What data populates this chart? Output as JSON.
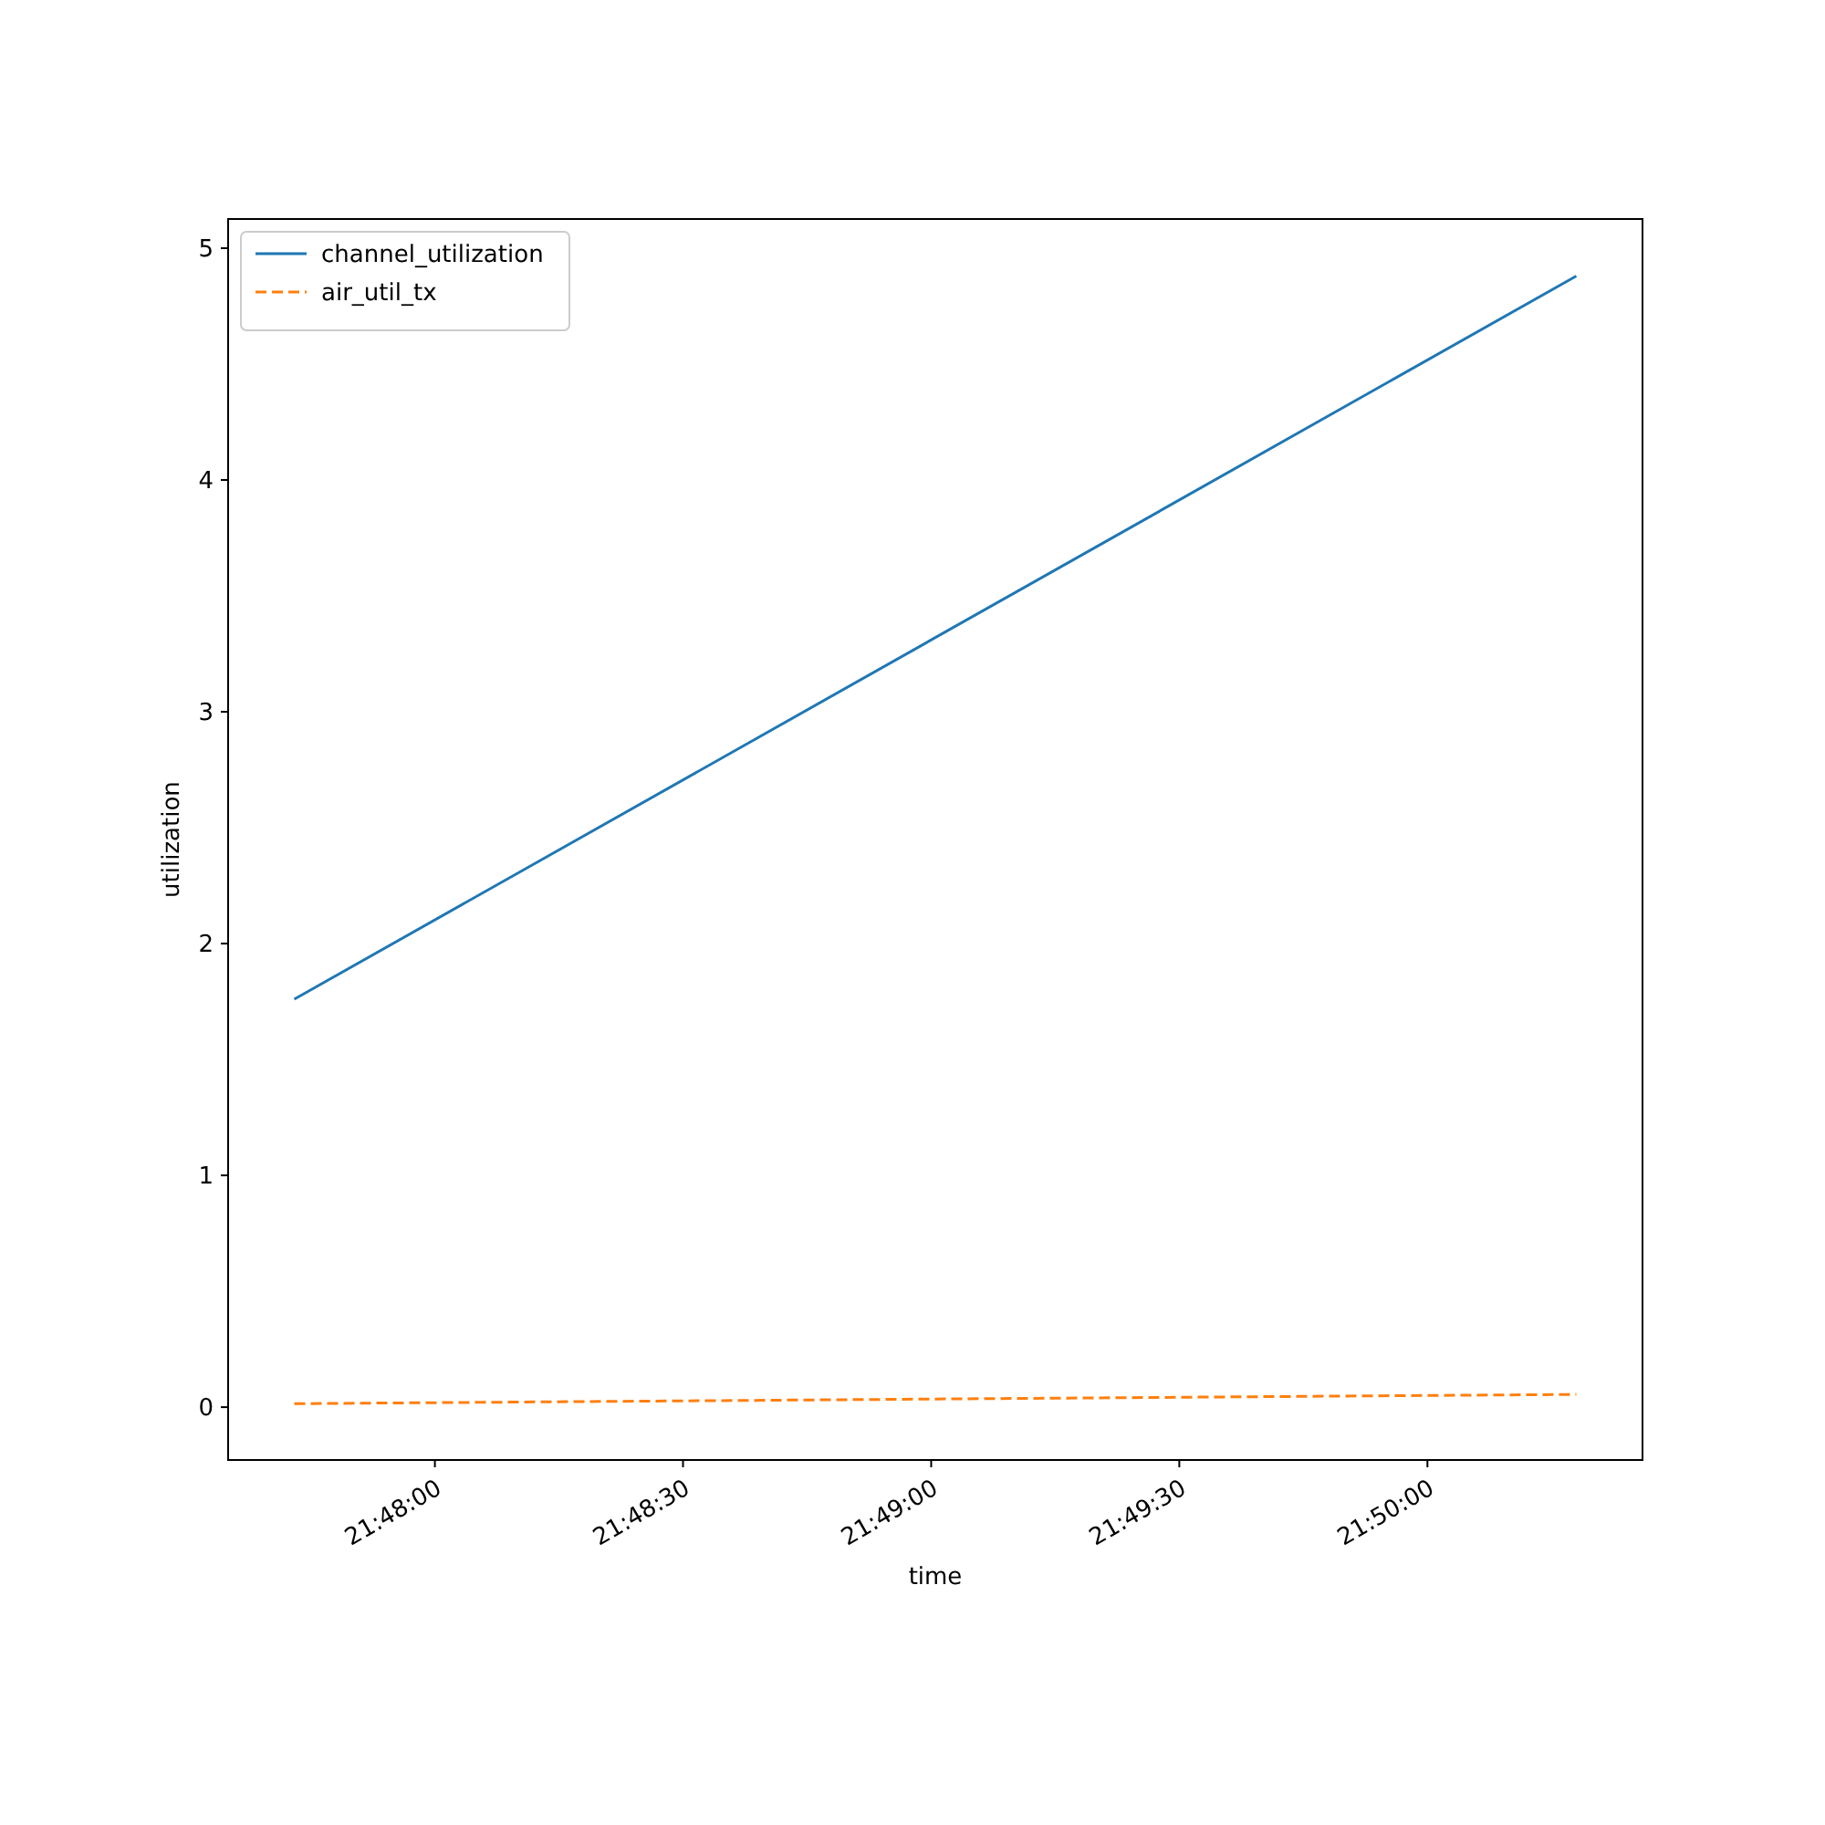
{
  "chart_data": {
    "type": "line",
    "xlabel": "time",
    "ylabel": "utilization",
    "x": [
      21.795278,
      21.838333
    ],
    "series": [
      {
        "name": "channel_utilization",
        "color": "#1f77b4",
        "values": [
          1.76,
          4.88
        ],
        "line_style": "solid"
      },
      {
        "name": "air_util_tx",
        "color": "#ff7f0e",
        "values": [
          0.015,
          0.055
        ],
        "line_style": "dashed"
      }
    ],
    "xlim": [
      21.793056,
      21.840556
    ],
    "xticks": [
      {
        "value": 21.8,
        "label": "21:48:00"
      },
      {
        "value": 21.808333,
        "label": "21:48:30"
      },
      {
        "value": 21.816667,
        "label": "21:49:00"
      },
      {
        "value": 21.825,
        "label": "21:49:30"
      },
      {
        "value": 21.833333,
        "label": "21:50:00"
      }
    ],
    "ylim": [
      -0.228,
      5.126
    ],
    "yticks": [
      0,
      1,
      2,
      3,
      4,
      5
    ],
    "grid": false,
    "legend": "top left",
    "marker": "none"
  }
}
